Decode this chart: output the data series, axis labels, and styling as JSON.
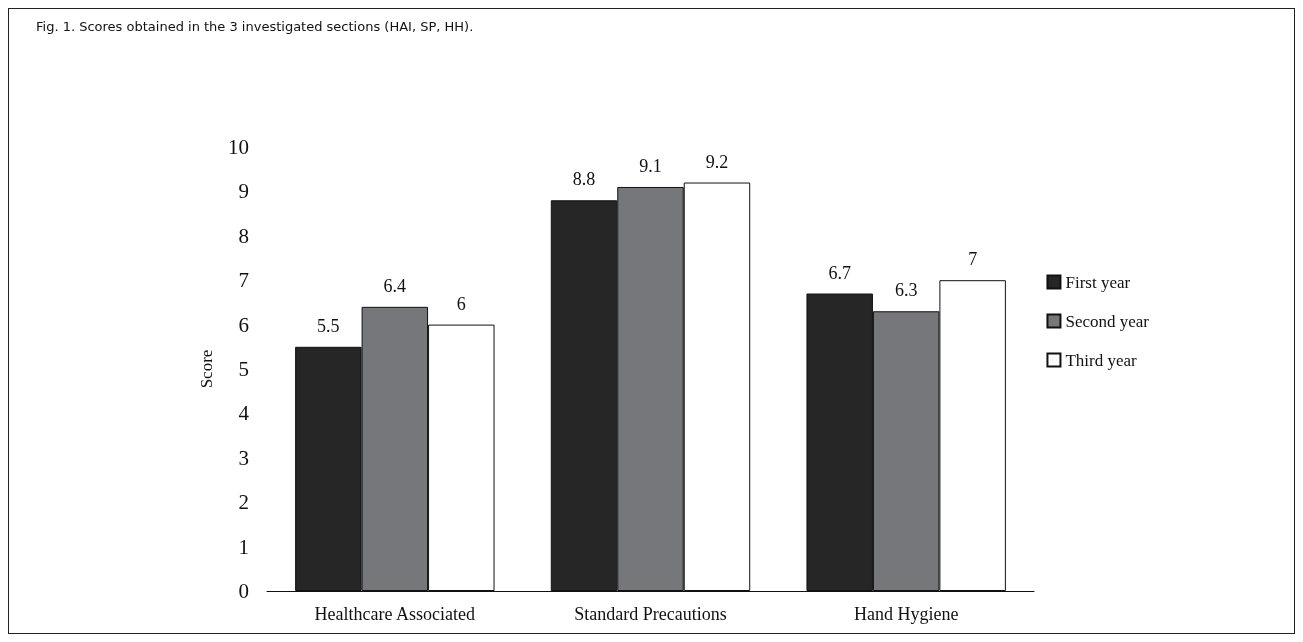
{
  "chart_data": {
    "type": "bar",
    "title": "Fig. 1. Scores obtained in the 3 investigated sections (HAI, SP, HH).",
    "ylabel": "Score",
    "categories": [
      "Healthcare Associated",
      "Standard Precautions",
      "Hand Hygiene"
    ],
    "series": [
      {
        "name": "First year",
        "color": "#262626",
        "values": [
          5.5,
          8.8,
          6.7
        ]
      },
      {
        "name": "Second year",
        "color": "#76777b",
        "values": [
          6.4,
          9.1,
          6.3
        ]
      },
      {
        "name": "Third year",
        "color": "#ffffff",
        "values": [
          6,
          9.2,
          7
        ]
      }
    ],
    "ylim": [
      0,
      10
    ],
    "yticks": [
      0,
      1,
      2,
      3,
      4,
      5,
      6,
      7,
      8,
      9,
      10
    ],
    "data_labels": true,
    "grid": false,
    "legend": "right"
  }
}
